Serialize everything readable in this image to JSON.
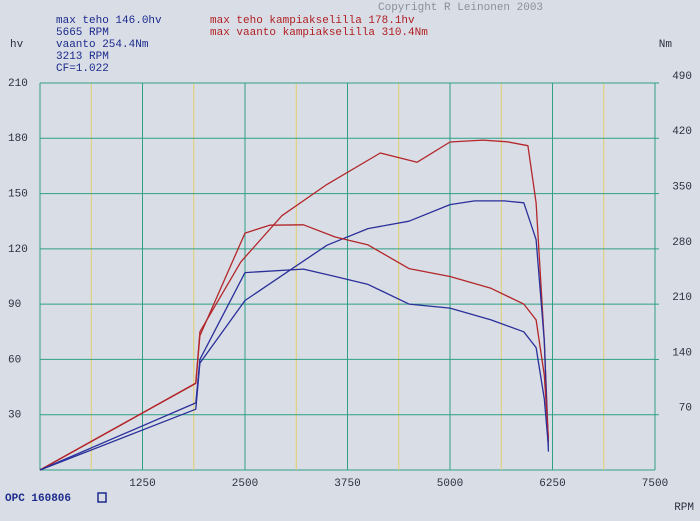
{
  "chart_data": {
    "type": "line",
    "copyright": "Copyright R Leinonen 2003",
    "annotations": [
      "max teho 146.0hv",
      "5665 RPM",
      "vaanto 254.4Nm",
      "3213 RPM",
      "CF=1.022"
    ],
    "crank_annotations": [
      "max teho kampiakselilla 178.1hv",
      "max vaanto kampiakselilla 310.4Nm"
    ],
    "footer": "OPC 160806",
    "y_label": "hv",
    "y2_label": "Nm",
    "x_label": "RPM",
    "xlim": [
      0,
      7500
    ],
    "xticks": [
      1250,
      2500,
      3750,
      5000,
      6250,
      7500
    ],
    "xminor": [
      625,
      1875,
      3125,
      4375,
      5625,
      6875
    ],
    "ylim": [
      0,
      210
    ],
    "yticks": [
      30,
      60,
      90,
      120,
      150,
      180,
      210
    ],
    "y2lim": [
      0,
      490
    ],
    "y2ticks": [
      70,
      140,
      210,
      280,
      350,
      420,
      490
    ],
    "grid": true,
    "grid_color": "#2f9f86",
    "minor_grid_color": "#e2cf6a",
    "series": [
      {
        "color": "#b3262a",
        "x": [
          0,
          1900,
          1950,
          2450,
          2950,
          3500,
          4150,
          4600,
          5000,
          5400,
          5700,
          5950,
          6050,
          6150,
          6200
        ],
        "values": [
          0,
          47,
          75,
          113,
          138,
          155,
          172,
          167,
          178,
          179,
          178.1,
          176,
          145,
          70,
          15
        ]
      },
      {
        "color": "#2a2f9a",
        "x": [
          0,
          1900,
          1950,
          2500,
          3000,
          3500,
          4000,
          4500,
          5000,
          5300,
          5665,
          5900,
          6050,
          6150,
          6200
        ],
        "values": [
          0,
          33,
          58,
          92,
          107,
          122,
          131,
          135,
          144,
          146,
          146.0,
          145,
          125,
          70,
          10
        ]
      },
      {
        "color": "#b3262a",
        "axis": "y2",
        "x": [
          0,
          1900,
          1950,
          2500,
          2800,
          3213,
          3600,
          4000,
          4500,
          5000,
          5500,
          5900,
          6050,
          6150,
          6200
        ],
        "values": [
          0,
          110,
          170,
          300,
          310,
          310.4,
          295,
          285,
          255,
          245,
          230,
          210,
          190,
          120,
          40
        ]
      },
      {
        "color": "#2a2f9a",
        "axis": "y2",
        "x": [
          0,
          1900,
          1950,
          2500,
          3213,
          3600,
          4000,
          4500,
          5000,
          5500,
          5900,
          6050,
          6150,
          6200
        ],
        "values": [
          0,
          85,
          140,
          250,
          254.4,
          245,
          235,
          210,
          205,
          190,
          175,
          155,
          90,
          30
        ]
      }
    ]
  }
}
